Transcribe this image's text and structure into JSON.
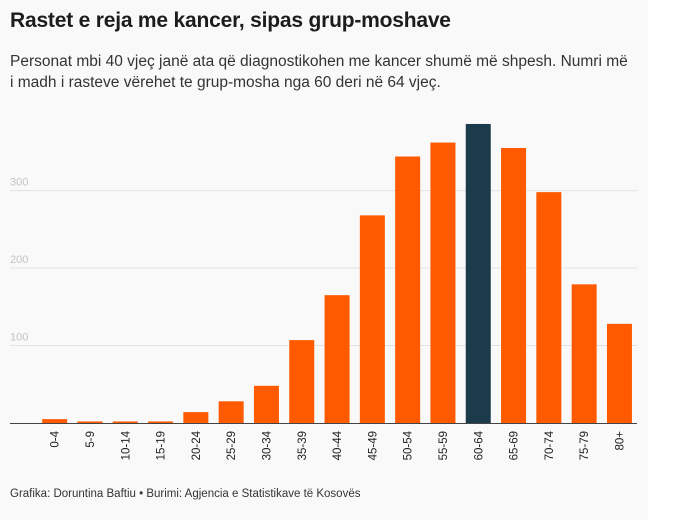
{
  "title": "Rastet e reja me kancer, sipas grup-moshave",
  "subtitle": "Personat mbi 40 vjeç janë ata që diagnostikohen me kancer shumë më shpesh. Numri më i madh i rasteve vërehet te grup-mosha nga 60 deri në 64 vjeç.",
  "footer": "Grafika: Doruntina Baftiu • Burimi: Agjencia e Statistikave të Kosovës",
  "chart_data": {
    "type": "bar",
    "title": "Rastet e reja me kancer, sipas grup-moshave",
    "xlabel": "",
    "ylabel": "",
    "categories": [
      "0-4",
      "5-9",
      "10-14",
      "15-19",
      "20-24",
      "25-29",
      "30-34",
      "35-39",
      "40-44",
      "45-49",
      "50-54",
      "55-59",
      "60-64",
      "65-69",
      "70-74",
      "75-79",
      "80+"
    ],
    "values": [
      5,
      2,
      2,
      2,
      14,
      28,
      48,
      107,
      165,
      268,
      344,
      362,
      386,
      355,
      298,
      179,
      128
    ],
    "highlight_category": "60-64",
    "y_ticks": [
      100,
      200,
      300
    ],
    "ylim": [
      0,
      390
    ],
    "grid": true,
    "colors": {
      "bar": "#ff5a00",
      "highlight": "#1b3a4b",
      "grid": "#e2e2e2",
      "axis": "#444444"
    }
  }
}
